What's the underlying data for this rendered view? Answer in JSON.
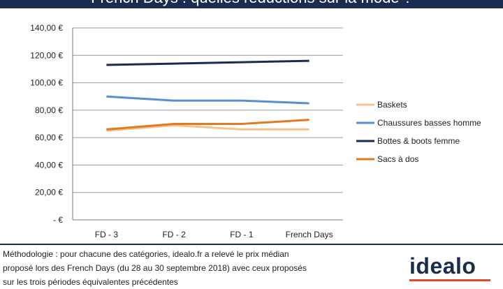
{
  "header": {
    "title": "French Days : quelles réductions sur la mode ?"
  },
  "chart_data": {
    "type": "line",
    "categories": [
      "FD - 3",
      "FD - 2",
      "FD - 1",
      "French Days"
    ],
    "y_ticks": [
      "140,00 €",
      "120,00 €",
      "100,00 €",
      "80,00 €",
      "60,00 €",
      "40,00 €",
      "20,00 €",
      "- €"
    ],
    "ylim": [
      0,
      140
    ],
    "grid": true,
    "legend_position": "right",
    "series": [
      {
        "name": "Baskets",
        "color": "#f5c28f",
        "values": [
          65,
          69,
          66,
          66
        ]
      },
      {
        "name": "Chaussures basses homme",
        "color": "#5b8ed0",
        "values": [
          90,
          87,
          87,
          85
        ]
      },
      {
        "name": "Bottes & boots femme",
        "color": "#1b2d4f",
        "values": [
          113,
          114,
          115,
          116
        ]
      },
      {
        "name": "Sacs à dos",
        "color": "#e07b24",
        "values": [
          66,
          70,
          70,
          73
        ]
      }
    ]
  },
  "footnote": {
    "line1": "Méthodologie : pour chacune des catégories, idealo.fr a relevé le prix médian",
    "line2": "proposé lors des French Days (du 28 au 30 septembre 2018) avec ceux proposés",
    "line3": "sur les trois périodes équivalentes précédentes"
  },
  "logo": {
    "text": "idealo",
    "accent_color": "#e3492b"
  }
}
